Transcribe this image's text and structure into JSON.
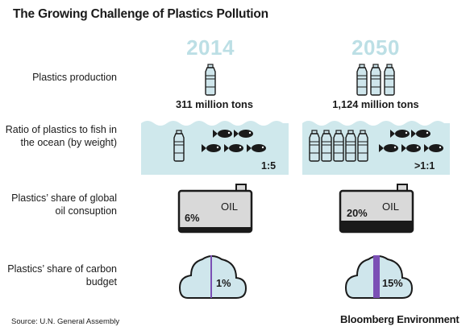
{
  "title": "The Growing Challenge of Plastics Pollution",
  "years": [
    "2014",
    "2050"
  ],
  "rows": {
    "production_label": "Plastics production",
    "ratio_label": "Ratio of plastics to fish in the ocean (by weight)",
    "oil_label": "Plastics’ share of global oil consuption",
    "carbon_label": "Plastics’ share of carbon budget"
  },
  "columns": [
    {
      "production": "311 million tons",
      "bottles_production": 1,
      "ratio": "1:5",
      "bottles_ocean": 1,
      "fish": 5,
      "oil_share": "6%",
      "oil_fill": 0.06,
      "carbon_share": "1%",
      "carbon_fill": 0.01
    },
    {
      "production": "1,124 million tons",
      "bottles_production": 3,
      "ratio": ">1:1",
      "bottles_ocean": 5,
      "fish": 5,
      "oil_share": "20%",
      "oil_fill": 0.2,
      "carbon_share": "15%",
      "carbon_fill": 0.15
    }
  ],
  "oil_text": "OIL",
  "source": "Source: U.N. General Assembly",
  "brand": "Bloomberg Environment",
  "colors": {
    "water": "#cfe8ec",
    "year": "#bcdfe5",
    "drum": "#d9d9d9",
    "cloud": "#cfe6ec",
    "carbon_line": "#7b4fb5",
    "dark": "#1a1a1a"
  }
}
